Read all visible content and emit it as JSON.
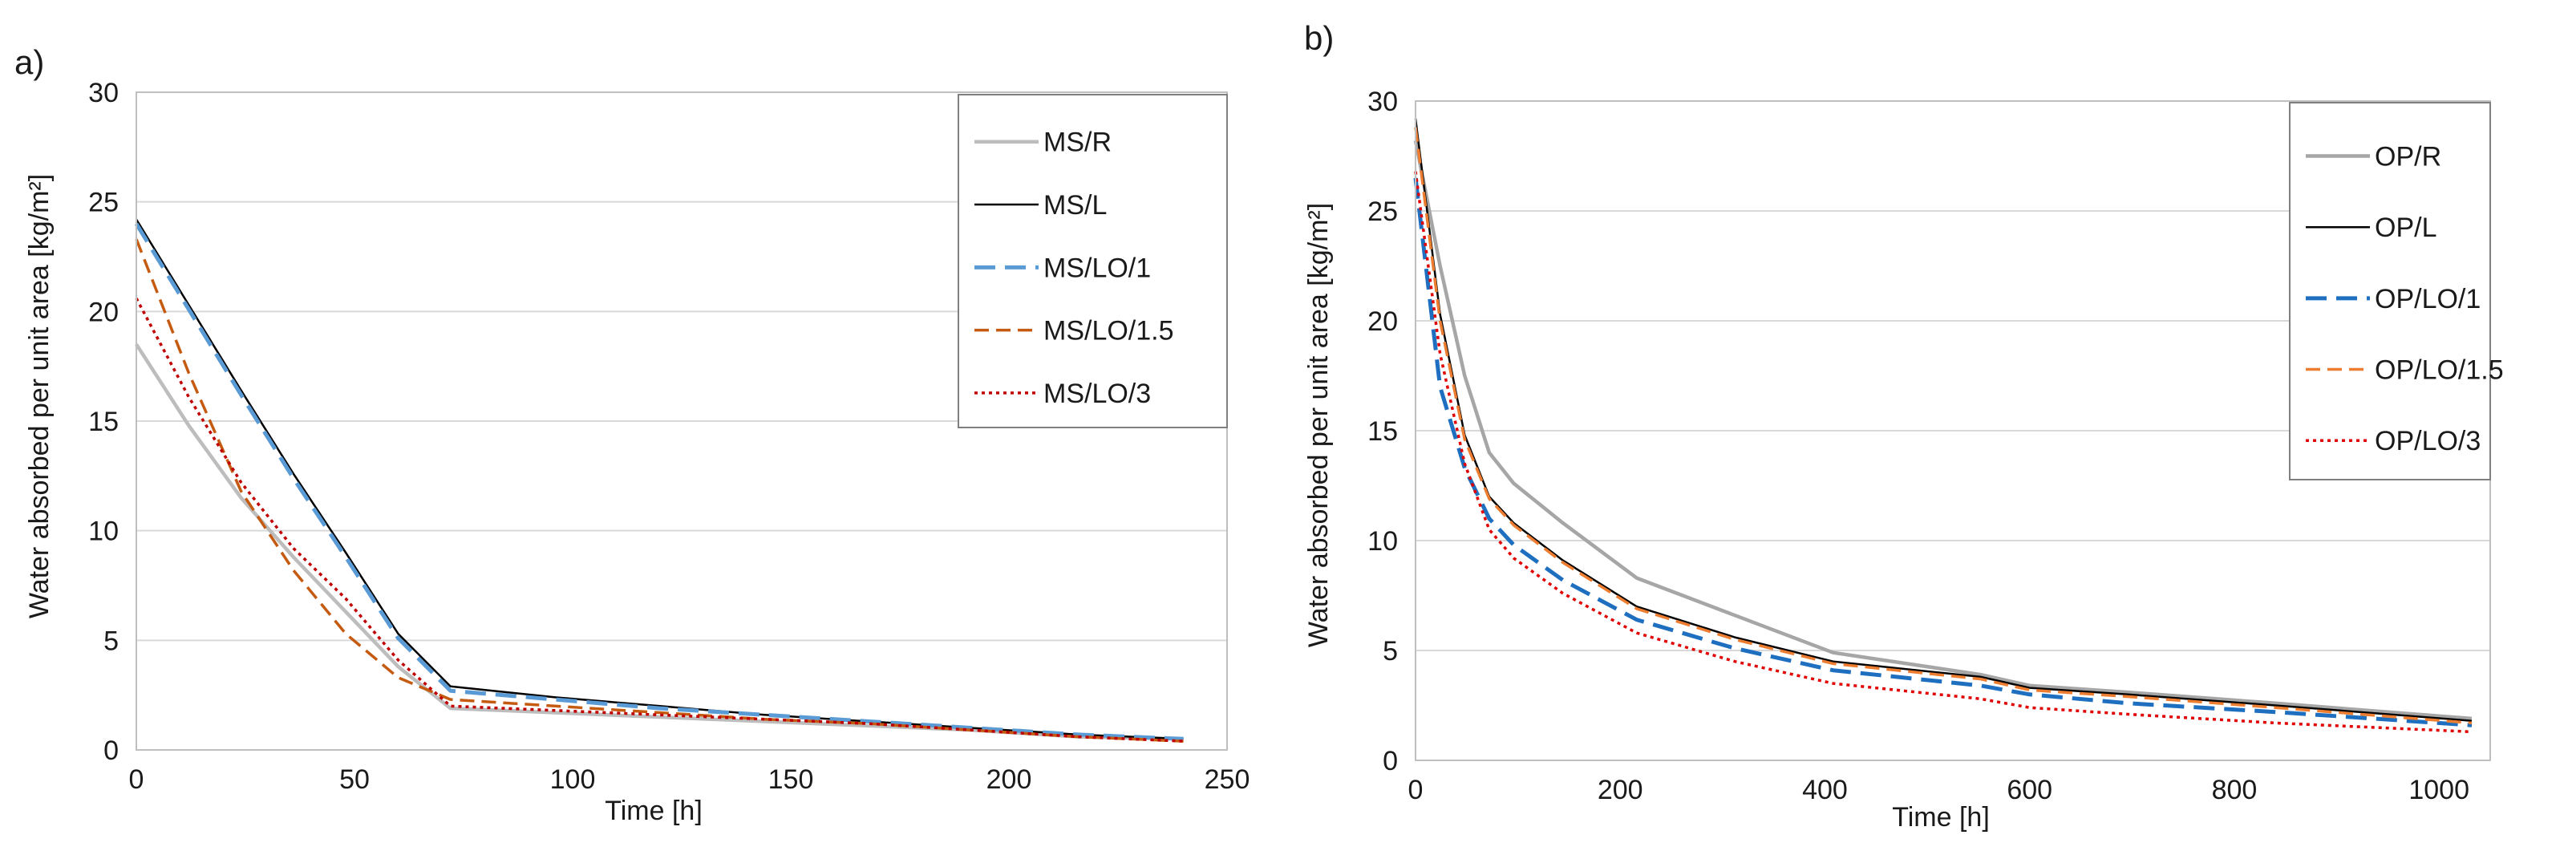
{
  "chart_data": [
    {
      "panel_label": "a)",
      "type": "line",
      "xlabel": "Time [h]",
      "ylabel": "Water absorbed per unit area [kg/m²]",
      "xlim": [
        0,
        250
      ],
      "ylim": [
        0,
        30
      ],
      "xticks": [
        0,
        50,
        100,
        150,
        200,
        250
      ],
      "yticks": [
        0,
        5,
        10,
        15,
        20,
        25,
        30
      ],
      "grid": "horizontal",
      "legend": "top-right",
      "series": [
        {
          "name": "MS/R",
          "color": "#bdbdbd",
          "dash": "solid",
          "x": [
            0,
            12,
            24,
            36,
            48,
            60,
            72,
            96,
            120,
            144,
            168,
            192,
            216,
            240
          ],
          "y": [
            18.5,
            14.8,
            11.5,
            8.8,
            6.3,
            3.8,
            1.9,
            1.7,
            1.5,
            1.3,
            1.1,
            0.9,
            0.6,
            0.5
          ]
        },
        {
          "name": "MS/L",
          "color": "#000000",
          "dash": "solid",
          "x": [
            0,
            12,
            24,
            36,
            48,
            60,
            72,
            96,
            120,
            144,
            168,
            192,
            216,
            240
          ],
          "y": [
            24.2,
            20.3,
            16.4,
            12.6,
            9.0,
            5.3,
            2.9,
            2.4,
            2.0,
            1.6,
            1.3,
            1.0,
            0.7,
            0.5
          ]
        },
        {
          "name": "MS/LO/1",
          "color": "#5b9bd5",
          "dash": "longdash",
          "x": [
            0,
            12,
            24,
            36,
            48,
            60,
            72,
            96,
            120,
            144,
            168,
            192,
            216,
            240
          ],
          "y": [
            24.0,
            20.1,
            16.2,
            12.4,
            8.8,
            5.1,
            2.7,
            2.3,
            1.9,
            1.6,
            1.3,
            1.0,
            0.7,
            0.5
          ]
        },
        {
          "name": "MS/LO/1.5",
          "color": "#c55a11",
          "dash": "dash",
          "x": [
            0,
            12,
            24,
            36,
            48,
            60,
            72,
            96,
            120,
            144,
            168,
            192,
            216,
            240
          ],
          "y": [
            23.3,
            17.2,
            11.8,
            8.2,
            5.3,
            3.3,
            2.3,
            2.0,
            1.7,
            1.4,
            1.2,
            0.9,
            0.6,
            0.4
          ]
        },
        {
          "name": "MS/LO/3",
          "color": "#c00000",
          "dash": "dot",
          "x": [
            0,
            12,
            24,
            36,
            48,
            60,
            72,
            96,
            120,
            144,
            168,
            192,
            216,
            240
          ],
          "y": [
            20.6,
            16.1,
            12.2,
            9.2,
            6.9,
            4.1,
            2.0,
            1.8,
            1.6,
            1.4,
            1.2,
            0.9,
            0.6,
            0.4
          ]
        }
      ]
    },
    {
      "panel_label": "b)",
      "type": "line",
      "xlabel": "Time [h]",
      "ylabel": "Water absorbed per unit area [kg/m²]",
      "xlim": [
        0,
        1050
      ],
      "ylim": [
        0,
        30
      ],
      "xticks": [
        0,
        200,
        400,
        600,
        800,
        1000
      ],
      "yticks": [
        0,
        5,
        10,
        15,
        20,
        25,
        30
      ],
      "grid": "horizontal",
      "legend": "top-right",
      "series": [
        {
          "name": "OP/R",
          "color": "#a6a6a6",
          "dash": "solid",
          "x": [
            0,
            24,
            48,
            72,
            96,
            144,
            216,
            312,
            408,
            552,
            600,
            696,
            840,
            1032
          ],
          "y": [
            28.2,
            22.5,
            17.5,
            14.0,
            12.6,
            10.8,
            8.3,
            6.6,
            4.9,
            3.9,
            3.4,
            3.1,
            2.6,
            1.9
          ]
        },
        {
          "name": "OP/L",
          "color": "#000000",
          "dash": "solid",
          "x": [
            0,
            24,
            48,
            72,
            96,
            144,
            216,
            312,
            408,
            552,
            600,
            696,
            840,
            1032
          ],
          "y": [
            29.2,
            20.3,
            14.8,
            12.0,
            10.8,
            9.1,
            7.0,
            5.6,
            4.5,
            3.8,
            3.3,
            3.0,
            2.5,
            1.8
          ]
        },
        {
          "name": "OP/LO/1",
          "color": "#1f6fc0",
          "dash": "longdash",
          "x": [
            0,
            24,
            48,
            72,
            96,
            144,
            216,
            312,
            408,
            552,
            600,
            696,
            840,
            1032
          ],
          "y": [
            26.5,
            17.0,
            13.3,
            11.0,
            9.8,
            8.2,
            6.4,
            5.1,
            4.1,
            3.4,
            3.0,
            2.6,
            2.2,
            1.6
          ]
        },
        {
          "name": "OP/LO/1.5",
          "color": "#ed7d31",
          "dash": "dash",
          "x": [
            0,
            24,
            48,
            72,
            96,
            144,
            216,
            312,
            408,
            552,
            600,
            696,
            840,
            1032
          ],
          "y": [
            28.8,
            20.0,
            14.6,
            11.9,
            10.7,
            9.0,
            6.9,
            5.5,
            4.4,
            3.7,
            3.2,
            2.9,
            2.4,
            1.7
          ]
        },
        {
          "name": "OP/LO/3",
          "color": "#e00000",
          "dash": "dot",
          "x": [
            0,
            24,
            48,
            72,
            96,
            144,
            216,
            312,
            408,
            552,
            600,
            696,
            840,
            1032
          ],
          "y": [
            26.8,
            18.5,
            13.5,
            10.5,
            9.2,
            7.6,
            5.8,
            4.5,
            3.5,
            2.8,
            2.4,
            2.1,
            1.7,
            1.3
          ]
        }
      ]
    }
  ]
}
